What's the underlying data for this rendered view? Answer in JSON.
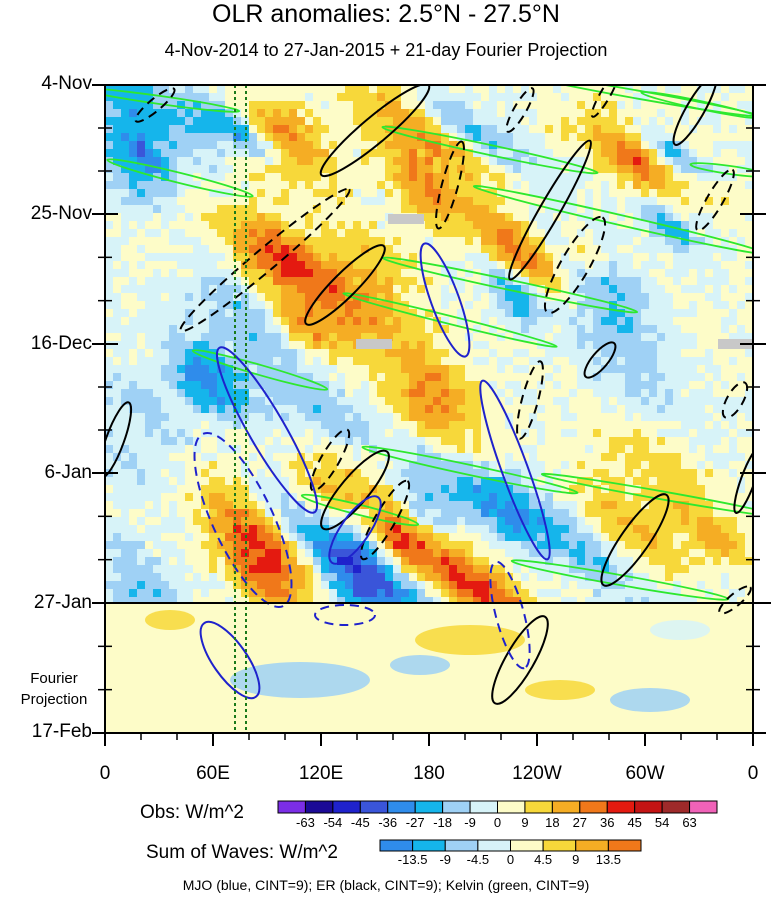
{
  "chart_data": {
    "type": "heatmap",
    "title": "OLR anomalies: 2.5°N - 27.5°N",
    "subtitle": "4-Nov-2014 to 27-Jan-2015 + 21-day Fourier Projection",
    "y_tick_labels": [
      "4-Nov",
      "25-Nov",
      "16-Dec",
      "6-Jan",
      "27-Jan",
      "17-Feb"
    ],
    "y_annotation": [
      "Fourier",
      "Projection"
    ],
    "x_tick_labels": [
      "0",
      "60E",
      "120E",
      "180",
      "120W",
      "60W",
      "0"
    ],
    "x_range_deg": [
      0,
      360
    ],
    "time_range": [
      "4-Nov-2014",
      "17-Feb-2015"
    ],
    "projection_start": "27-Jan",
    "obs_colorbar": {
      "label": "Obs: W/m^2",
      "levels": [
        "-63",
        "-54",
        "-45",
        "-36",
        "-27",
        "-18",
        "-9",
        "0",
        "9",
        "18",
        "27",
        "36",
        "45",
        "54",
        "63"
      ],
      "colors": [
        "#7b2ee6",
        "#1b0a96",
        "#1f22cc",
        "#3a55d9",
        "#2f8ceb",
        "#15b5eb",
        "#9fd1f5",
        "#d7f3f8",
        "#fdfcc8",
        "#f7d83a",
        "#f5ad24",
        "#f0781a",
        "#e41a10",
        "#c41414",
        "#9e2a2a",
        "#f062b8"
      ]
    },
    "waves_colorbar": {
      "label": "Sum of Waves: W/m^2",
      "levels": [
        "-13.5",
        "-9",
        "-4.5",
        "0",
        "4.5",
        "9",
        "13.5"
      ],
      "colors": [
        "#2f8ceb",
        "#15b5eb",
        "#9fd1f5",
        "#d7f3f8",
        "#fdfcc8",
        "#f7d83a",
        "#f5ad24",
        "#f0781a"
      ]
    },
    "contours": [
      {
        "name": "MJO",
        "color": "blue",
        "cint": 9
      },
      {
        "name": "ER",
        "color": "black",
        "cint": 9
      },
      {
        "name": "Kelvin",
        "color": "green",
        "cint": 9
      }
    ],
    "legend_text": "MJO (blue, CINT=9); ER (black, CINT=9); Kelvin (green, CINT=9)",
    "colors": {
      "mjo": "#1f22cc",
      "er": "#000000",
      "kelvin": "#2ee82e",
      "reference_line": "#1a7a1a"
    }
  }
}
